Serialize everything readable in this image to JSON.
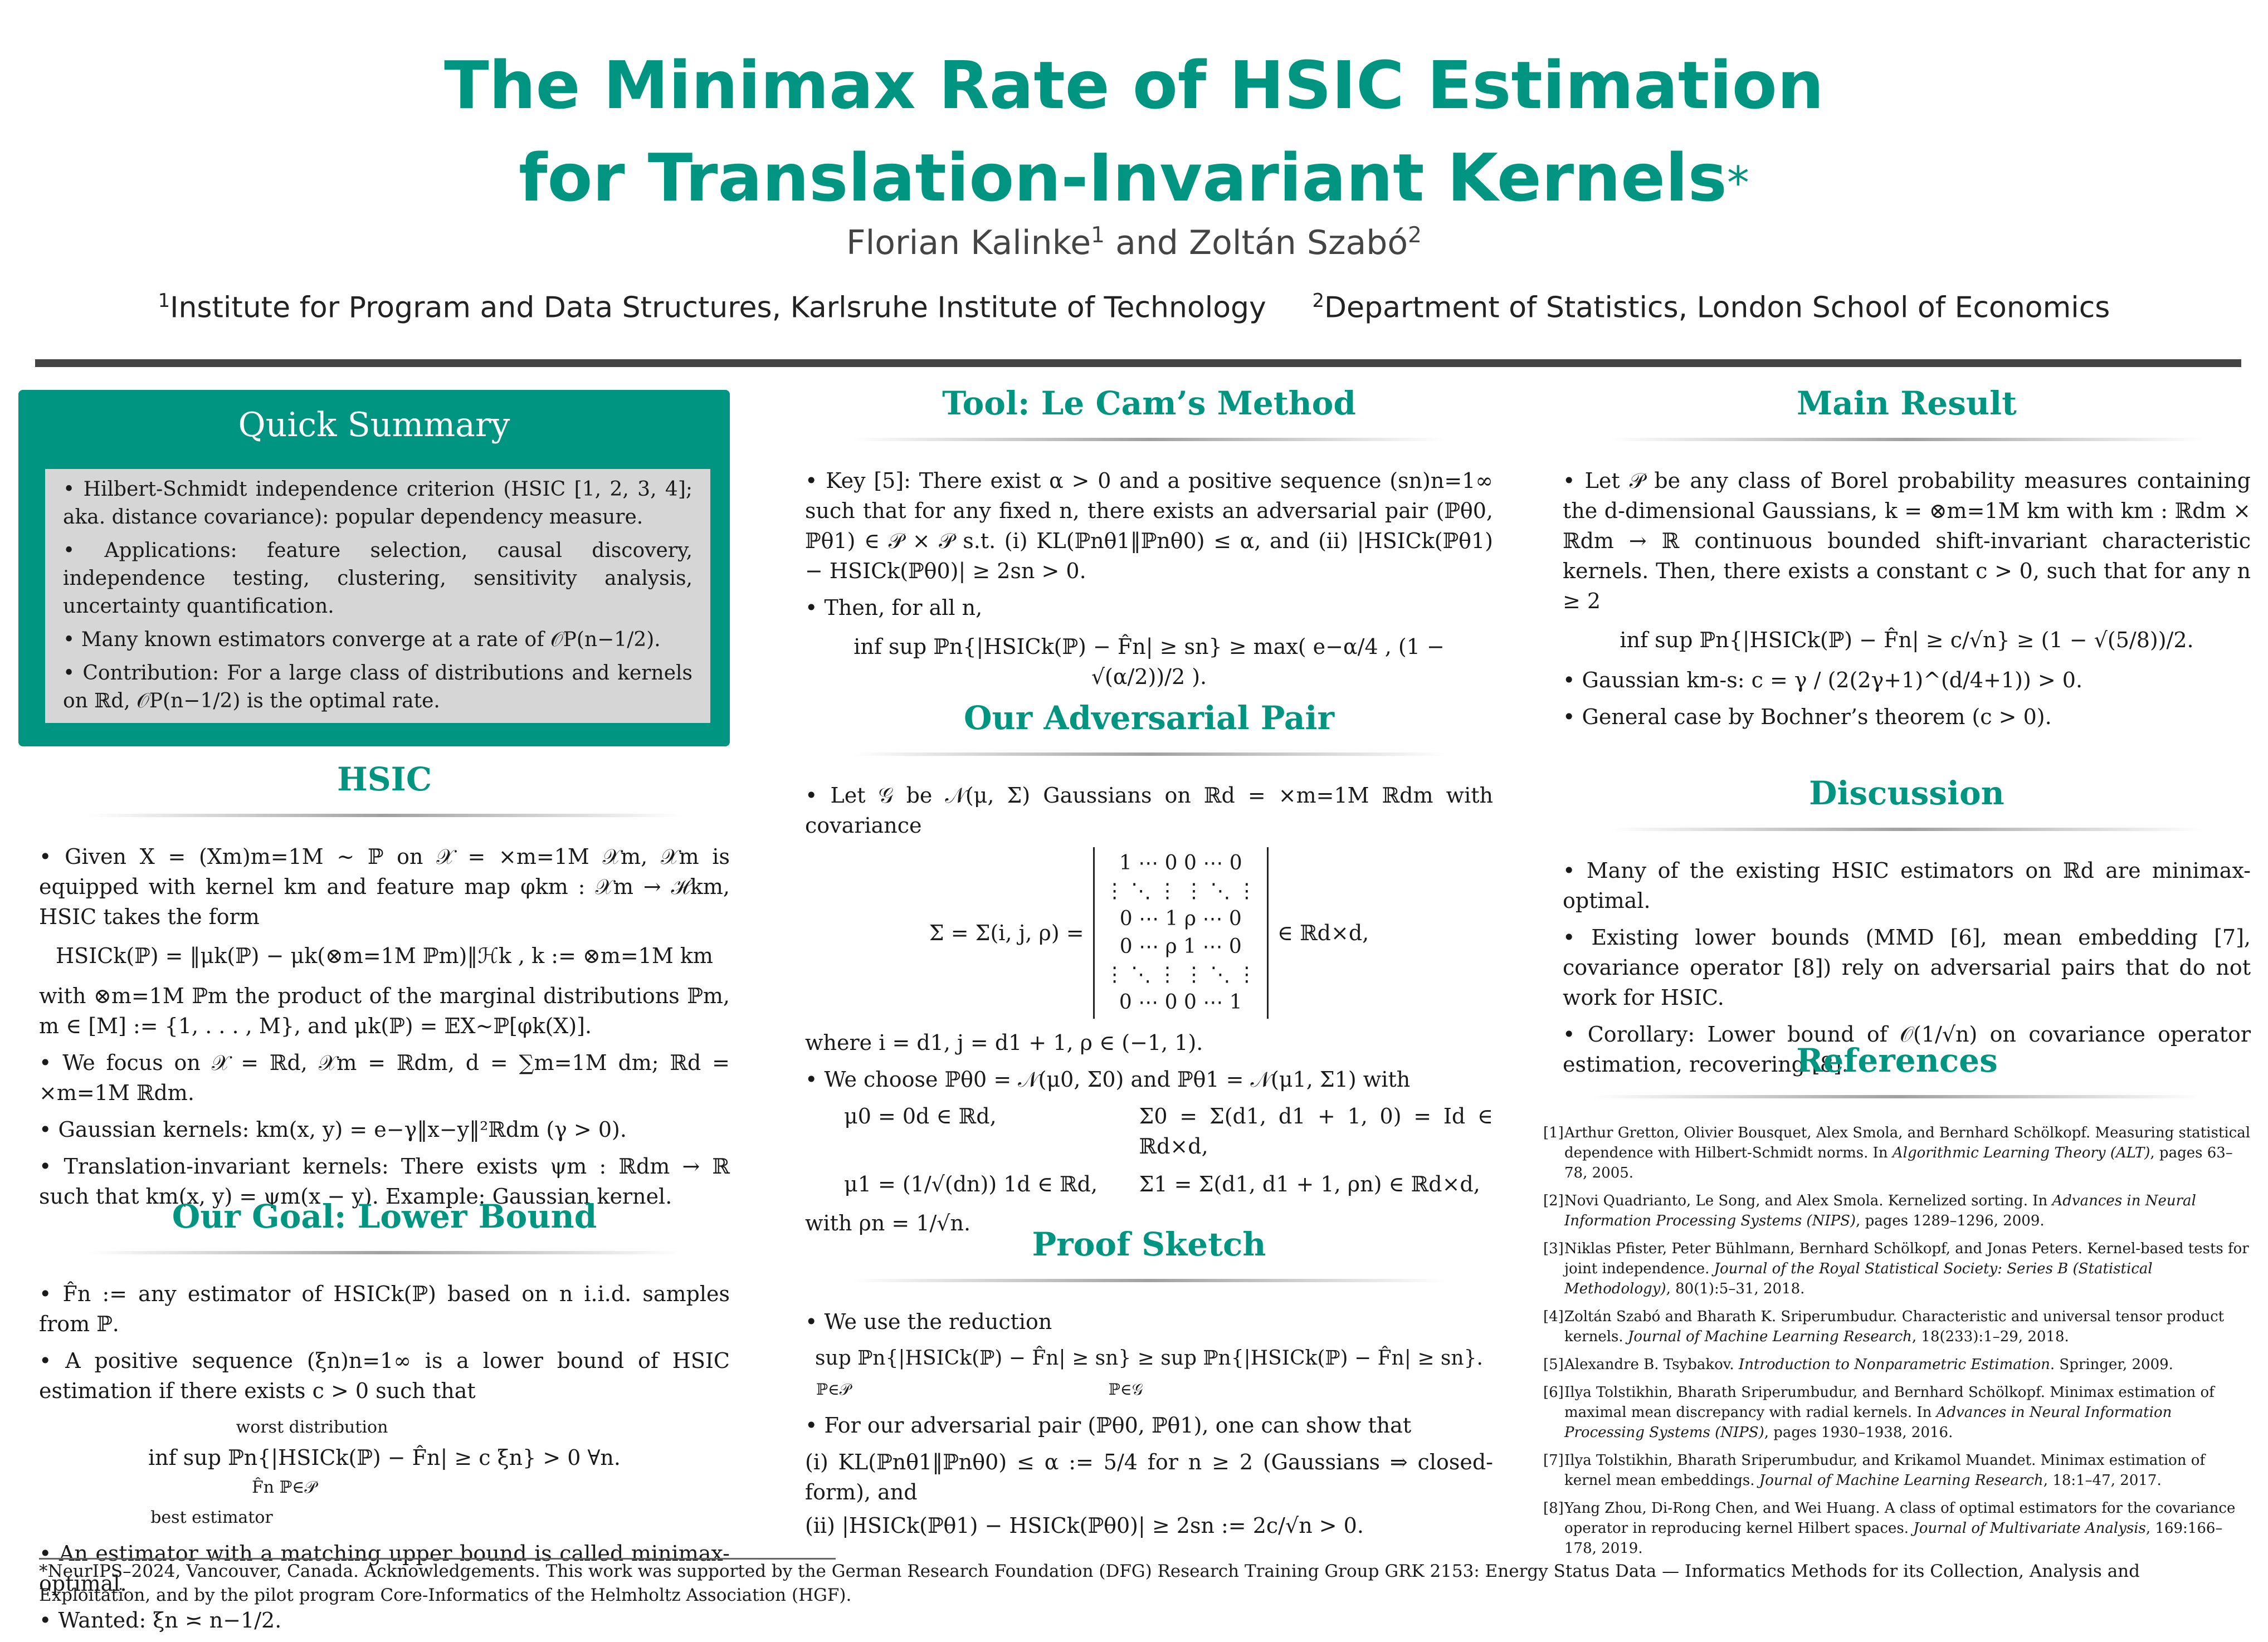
{
  "header": {
    "title_line1": "The Minimax Rate of HSIC Estimation",
    "title_line2": "for Translation-Invariant Kernels",
    "title_mark": "*",
    "author1": "Florian Kalinke",
    "author1_sup": "1",
    "author_and": "and",
    "author2": "Zoltán Szabó",
    "author2_sup": "2",
    "affil1_sup": "1",
    "affil1": "Institute for Program and Data Structures, Karlsruhe Institute of Technology",
    "affil2_sup": "2",
    "affil2": "Department of Statistics, London School of Economics"
  },
  "quick_summary": {
    "title": "Quick Summary",
    "b1": "Hilbert-Schmidt independence criterion (HSIC [1, 2, 3, 4]; aka. distance covariance): popular dependency measure.",
    "b2": "Applications: feature selection, causal discovery, independence testing, clustering, sensitivity analysis, uncertainty quantification.",
    "b3": "Many known estimators converge at a rate of 𝒪P(n−1/2).",
    "b4": "Contribution: For a large class of distributions and kernels on ℝd, 𝒪P(n−1/2) is the optimal rate."
  },
  "hsic": {
    "title": "HSIC",
    "p1": "Given X = (Xm)m=1M ∼ ℙ on 𝒳 = ×m=1M 𝒳m, 𝒳m is equipped with kernel km and feature map φkm : 𝒳m → ℋkm, HSIC takes the form",
    "eq1": "HSICk(ℙ) = ‖μk(ℙ) − μk(⊗m=1M ℙm)‖ℋk ,        k := ⊗m=1M km",
    "p2": "with ⊗m=1M ℙm the product of the marginal distributions ℙm, m ∈ [M] := {1, . . . , M}, and μk(ℙ) = 𝔼X∼ℙ[φk(X)].",
    "b2": "We focus on 𝒳 = ℝd, 𝒳m = ℝdm, d = ∑m=1M dm; ℝd = ×m=1M ℝdm.",
    "b3": "Gaussian kernels: km(x, y) = e−γ‖x−y‖²ℝdm (γ > 0).",
    "b4": "Translation-invariant kernels: There exists ψm : ℝdm → ℝ such that km(x, y) = ψm(x − y). Example: Gaussian kernel."
  },
  "goal": {
    "title": "Our Goal: Lower Bound",
    "b1": "F̂n := any estimator of HSICk(ℙ) based on n i.i.d. samples from ℙ.",
    "b2": "A positive sequence (ξn)n=1∞ is a lower bound of HSIC estimation if there exists c > 0 such that",
    "eq_top": "worst distribution",
    "eq": "inf sup ℙn{|HSICk(ℙ) − F̂n| ≥ c ξn} > 0   ∀n.",
    "eq_sub": "F̂n   ℙ∈𝒫",
    "eq_bottom": "best estimator",
    "b3": "An estimator with a matching upper bound is called minimax-optimal.",
    "b4": "Wanted: ξn ≍ n−1/2."
  },
  "tool": {
    "title": "Tool: Le Cam’s Method",
    "b1": "Key [5]: There exist α > 0 and a positive sequence (sn)n=1∞ such that for any fixed n, there exists an adversarial pair (ℙθ0, ℙθ1) ∈ 𝒫 × 𝒫 s.t. (i) KL(ℙnθ1‖ℙnθ0) ≤ α, and (ii) |HSICk(ℙθ1) − HSICk(ℙθ0)| ≥ 2sn > 0.",
    "b2": "Then, for all n,",
    "eq": "inf sup ℙn{|HSICk(ℙ) − F̂n| ≥ sn} ≥ max( e−α/4 , (1 − √(α/2))/2 )."
  },
  "pair": {
    "title": "Our Adversarial Pair",
    "b1": "Let 𝒢 be 𝒩(μ, Σ) Gaussians on ℝd = ×m=1M ℝdm with covariance",
    "eq_lhs": "Σ = Σ(i, j, ρ) =",
    "matrix": [
      "1 ⋯ 0 0 ⋯ 0",
      "⋮ ⋱ ⋮ ⋮ ⋱ ⋮",
      "0 ⋯ 1 ρ ⋯ 0",
      "0 ⋯ ρ 1 ⋯ 0",
      "⋮ ⋱ ⋮ ⋮ ⋱ ⋮",
      "0 ⋯ 0 0 ⋯ 1"
    ],
    "eq_rhs": "∈ ℝd×d,",
    "where": "where i = d1, j = d1 + 1, ρ ∈ (−1, 1).",
    "b2": "We choose ℙθ0 = 𝒩(μ0, Σ0) and ℙθ1 = 𝒩(μ1, Σ1) with",
    "mu0": "μ0 = 0d ∈ ℝd,",
    "sigma0": "Σ0 = Σ(d1, d1 + 1, 0) = Id ∈ ℝd×d,",
    "mu1": "μ1 = (1/√(dn)) 1d ∈ ℝd,",
    "sigma1": "Σ1 = Σ(d1, d1 + 1, ρn) ∈ ℝd×d,",
    "with": "with ρn = 1/√n."
  },
  "proof": {
    "title": "Proof Sketch",
    "b1": "We use the reduction",
    "eq1": "sup ℙn{|HSICk(ℙ) − F̂n| ≥ sn} ≥ sup ℙn{|HSICk(ℙ) − F̂n| ≥ sn}.",
    "eq1_sub": "ℙ∈𝒫                                                    ℙ∈𝒢",
    "b2": "For our adversarial pair (ℙθ0, ℙθ1), one can show that",
    "i": "(i) KL(ℙnθ1‖ℙnθ0) ≤ α := 5/4 for n ≥ 2 (Gaussians ⇒ closed-form), and",
    "ii": "(ii) |HSICk(ℙθ1) − HSICk(ℙθ0)| ≥ 2sn := 2c/√n > 0."
  },
  "main": {
    "title": "Main Result",
    "b1": "Let 𝒫 be any class of Borel probability measures containing the d-dimensional Gaussians, k = ⊗m=1M km with km : ℝdm × ℝdm → ℝ continuous bounded shift-invariant characteristic kernels. Then, there exists a constant c > 0, such that for any n ≥ 2",
    "eq": "inf sup ℙn{|HSICk(ℙ) − F̂n| ≥ c/√n} ≥ (1 − √(5/8))/2.",
    "b2": "Gaussian km-s: c = γ / (2(2γ+1)^(d/4+1)) > 0.",
    "b3": "General case by Bochner’s theorem (c > 0)."
  },
  "discussion": {
    "title": "Discussion",
    "b1": "Many of the existing HSIC estimators on ℝd are minimax-optimal.",
    "b2": "Existing lower bounds (MMD [6], mean embedding [7], covariance operator [8]) rely on adversarial pairs that do not work for HSIC.",
    "b3": "Corollary: Lower bound of 𝒪(1/√n) on covariance operator estimation, recovering [8]."
  },
  "references": {
    "title": "References",
    "items": [
      {
        "num": "[1]",
        "text": "Arthur Gretton, Olivier Bousquet, Alex Smola, and Bernhard Schölkopf. Measuring statistical dependence with Hilbert-Schmidt norms. In ",
        "venue": "Algorithmic Learning Theory (ALT)",
        "rest": ", pages 63–78, 2005."
      },
      {
        "num": "[2]",
        "text": "Novi Quadrianto, Le Song, and Alex Smola. Kernelized sorting. In ",
        "venue": "Advances in Neural Information Processing Systems (NIPS)",
        "rest": ", pages 1289–1296, 2009."
      },
      {
        "num": "[3]",
        "text": "Niklas Pfister, Peter Bühlmann, Bernhard Schölkopf, and Jonas Peters. Kernel-based tests for joint independence. ",
        "venue": "Journal of the Royal Statistical Society: Series B (Statistical Methodology)",
        "rest": ", 80(1):5–31, 2018."
      },
      {
        "num": "[4]",
        "text": "Zoltán Szabó and Bharath K. Sriperumbudur. Characteristic and universal tensor product kernels. ",
        "venue": "Journal of Machine Learning Research",
        "rest": ", 18(233):1–29, 2018."
      },
      {
        "num": "[5]",
        "text": "Alexandre B. Tsybakov. ",
        "venue": "Introduction to Nonparametric Estimation",
        "rest": ". Springer, 2009."
      },
      {
        "num": "[6]",
        "text": "Ilya Tolstikhin, Bharath Sriperumbudur, and Bernhard Schölkopf. Minimax estimation of maximal mean discrepancy with radial kernels. In ",
        "venue": "Advances in Neural Information Processing Systems (NIPS)",
        "rest": ", pages 1930–1938, 2016."
      },
      {
        "num": "[7]",
        "text": "Ilya Tolstikhin, Bharath Sriperumbudur, and Krikamol Muandet. Minimax estimation of kernel mean embeddings. ",
        "venue": "Journal of Machine Learning Research",
        "rest": ", 18:1–47, 2017."
      },
      {
        "num": "[8]",
        "text": "Yang Zhou, Di-Rong Chen, and Wei Huang. A class of optimal estimators for the covariance operator in reproducing kernel Hilbert spaces. ",
        "venue": "Journal of Multivariate Analysis",
        "rest": ", 169:166–178, 2019."
      }
    ]
  },
  "footnote": "*NeurIPS–2024, Vancouver, Canada. Acknowledgements. This work was supported by the German Research Foundation (DFG) Research Training Group GRK 2153: Energy Status Data — Informatics Methods for its Collection, Analysis and Exploitation, and by the pilot program Core-Informatics of the Helmholtz Association (HGF).",
  "colors": {
    "accent": "#009580",
    "highlight_blue": "#4a78c8",
    "highlight_orange": "#e8a020",
    "box_fill": "#d6d6d6",
    "rule": "#444444"
  }
}
